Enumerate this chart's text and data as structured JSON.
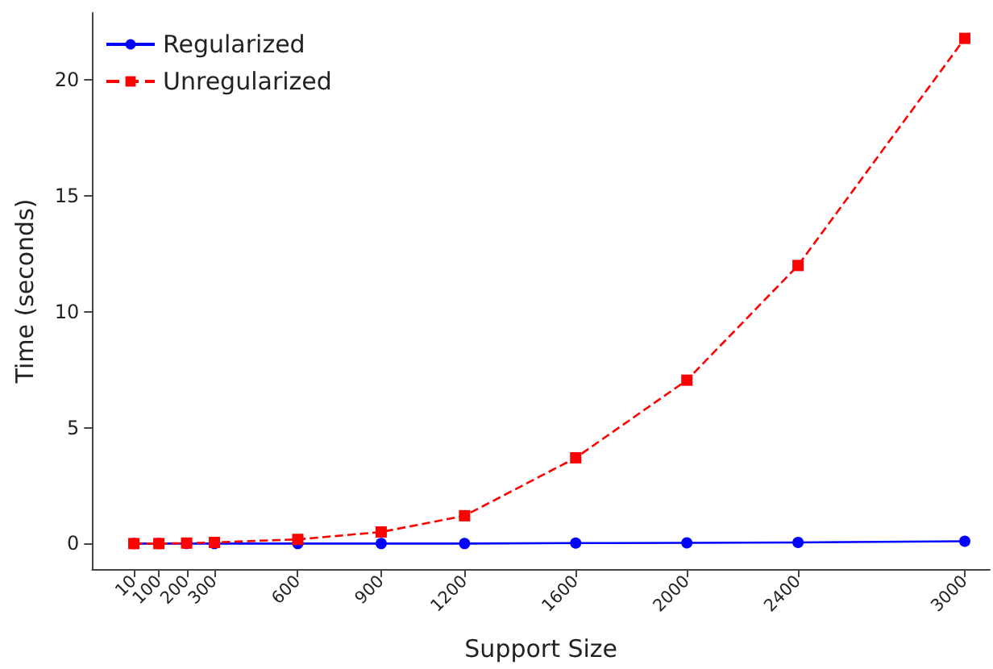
{
  "chart_data": {
    "type": "line",
    "xlabel": "Support Size",
    "ylabel": "Time (seconds)",
    "x": [
      10,
      100,
      200,
      300,
      600,
      900,
      1200,
      1600,
      2000,
      2400,
      3000
    ],
    "series": [
      {
        "name": "Regularized",
        "color": "#0000ff",
        "marker": "circle",
        "line_style": "solid",
        "values": [
          0,
          0,
          0,
          0,
          0,
          0,
          0,
          0.02,
          0.03,
          0.05,
          0.1
        ]
      },
      {
        "name": "Unregularized",
        "color": "#ff0000",
        "marker": "square",
        "line_style": "dashed",
        "values": [
          0,
          0,
          0.02,
          0.05,
          0.18,
          0.5,
          1.2,
          3.7,
          7.05,
          12.0,
          21.8
        ]
      }
    ],
    "xlim": [
      -140,
      3090
    ],
    "ylim": [
      -1.1,
      22.9
    ],
    "xticks": [
      10,
      100,
      200,
      300,
      600,
      900,
      1200,
      1600,
      2000,
      2400,
      3000
    ],
    "yticks": [
      0,
      5,
      10,
      15,
      20
    ],
    "grid": false,
    "legend": "top left"
  }
}
